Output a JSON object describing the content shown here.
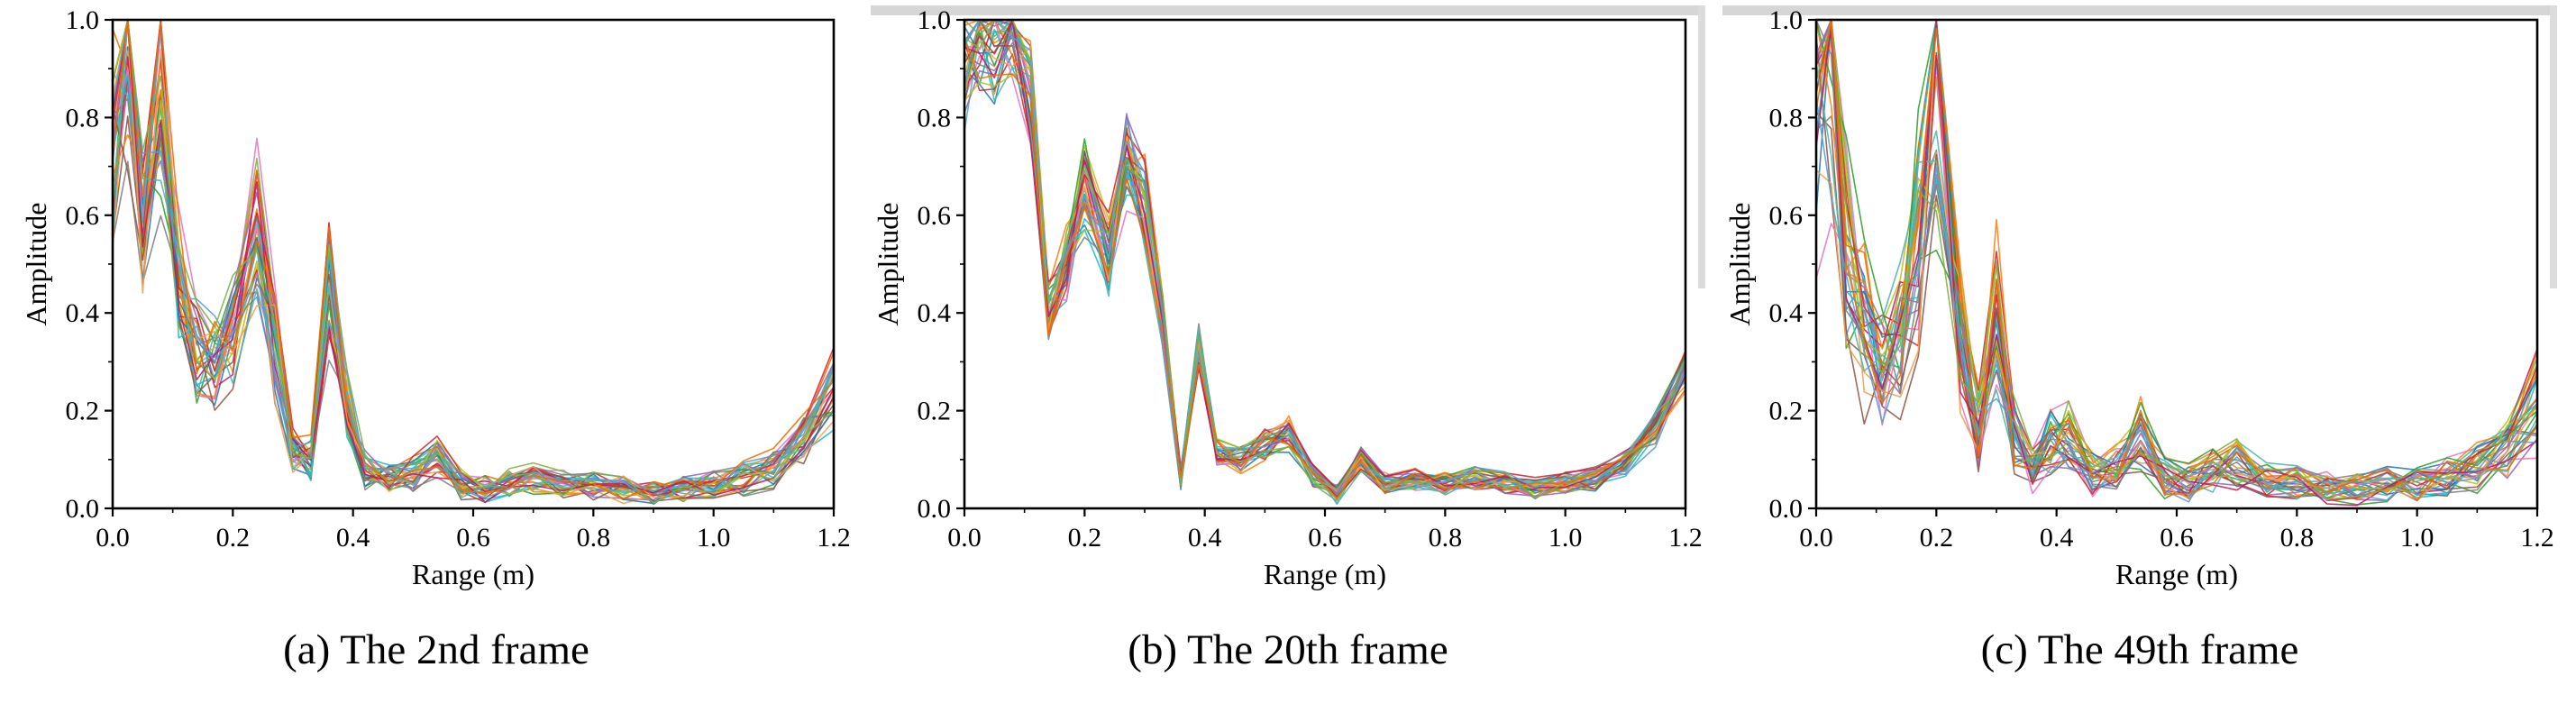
{
  "figure": {
    "background": "#ffffff",
    "panel_count": 3
  },
  "palette": [
    "#ff7f0e",
    "#2ca02c",
    "#1f77b4",
    "#e377c2",
    "#17becf",
    "#9467bd",
    "#bcbd22",
    "#d62728",
    "#8c564b",
    "#7f7f7f",
    "#f29e4c",
    "#4db6ac",
    "#c2185b",
    "#5c9bd5",
    "#7cb342",
    "#ef6c00"
  ],
  "chart_data": [
    {
      "type": "line",
      "title": "(a) The 2nd frame",
      "xlabel": "Range (m)",
      "ylabel": "Amplitude",
      "xlim": [
        0.0,
        1.2
      ],
      "ylim": [
        0.0,
        1.0
      ],
      "xtick_labels": [
        "0.0",
        "0.2",
        "0.4",
        "0.6",
        "0.8",
        "1.0",
        "1.2"
      ],
      "ytick_labels": [
        "0.0",
        "0.2",
        "0.4",
        "0.6",
        "0.8",
        "1.0"
      ],
      "grid": false,
      "legend": null,
      "n_lines": 32,
      "spread": 0.22,
      "x": [
        0.0,
        0.025,
        0.05,
        0.08,
        0.11,
        0.14,
        0.17,
        0.2,
        0.24,
        0.27,
        0.3,
        0.33,
        0.36,
        0.39,
        0.42,
        0.46,
        0.5,
        0.54,
        0.58,
        0.62,
        0.66,
        0.7,
        0.75,
        0.8,
        0.85,
        0.9,
        0.95,
        1.0,
        1.05,
        1.1,
        1.15,
        1.2
      ],
      "base": [
        0.75,
        0.92,
        0.58,
        0.85,
        0.45,
        0.32,
        0.3,
        0.35,
        0.55,
        0.33,
        0.12,
        0.1,
        0.44,
        0.2,
        0.08,
        0.06,
        0.07,
        0.1,
        0.05,
        0.04,
        0.05,
        0.06,
        0.05,
        0.05,
        0.04,
        0.03,
        0.04,
        0.05,
        0.06,
        0.08,
        0.14,
        0.24
      ]
    },
    {
      "type": "line",
      "title": "(b) The 20th frame",
      "xlabel": "Range (m)",
      "ylabel": "Amplitude",
      "xlim": [
        0.0,
        1.2
      ],
      "ylim": [
        0.0,
        1.0
      ],
      "xtick_labels": [
        "0.0",
        "0.2",
        "0.4",
        "0.6",
        "0.8",
        "1.0",
        "1.2"
      ],
      "ytick_labels": [
        "0.0",
        "0.2",
        "0.4",
        "0.6",
        "0.8",
        "1.0"
      ],
      "grid": false,
      "legend": null,
      "n_lines": 32,
      "spread": 0.09,
      "x": [
        0.0,
        0.025,
        0.05,
        0.08,
        0.11,
        0.14,
        0.17,
        0.2,
        0.24,
        0.27,
        0.3,
        0.33,
        0.36,
        0.39,
        0.42,
        0.46,
        0.5,
        0.54,
        0.58,
        0.62,
        0.66,
        0.7,
        0.75,
        0.8,
        0.85,
        0.9,
        0.95,
        1.0,
        1.05,
        1.1,
        1.15,
        1.2
      ],
      "base": [
        0.9,
        0.98,
        0.96,
        1.0,
        0.85,
        0.4,
        0.5,
        0.65,
        0.52,
        0.72,
        0.62,
        0.38,
        0.06,
        0.33,
        0.12,
        0.1,
        0.13,
        0.15,
        0.07,
        0.03,
        0.1,
        0.05,
        0.06,
        0.05,
        0.06,
        0.05,
        0.04,
        0.05,
        0.06,
        0.09,
        0.16,
        0.28
      ]
    },
    {
      "type": "line",
      "title": "(c) The 49th frame",
      "xlabel": "Range (m)",
      "ylabel": "Amplitude",
      "xlim": [
        0.0,
        1.2
      ],
      "ylim": [
        0.0,
        1.0
      ],
      "xtick_labels": [
        "0.0",
        "0.2",
        "0.4",
        "0.6",
        "0.8",
        "1.0",
        "1.2"
      ],
      "ytick_labels": [
        "0.0",
        "0.2",
        "0.4",
        "0.6",
        "0.8",
        "1.0"
      ],
      "grid": false,
      "legend": null,
      "n_lines": 32,
      "spread": 0.32,
      "x": [
        0.0,
        0.025,
        0.05,
        0.08,
        0.11,
        0.14,
        0.17,
        0.2,
        0.24,
        0.27,
        0.3,
        0.33,
        0.36,
        0.39,
        0.42,
        0.46,
        0.5,
        0.54,
        0.58,
        0.62,
        0.66,
        0.7,
        0.75,
        0.8,
        0.85,
        0.9,
        0.95,
        1.0,
        1.05,
        1.1,
        1.15,
        1.2
      ],
      "base": [
        0.8,
        0.95,
        0.5,
        0.35,
        0.3,
        0.33,
        0.55,
        0.88,
        0.35,
        0.16,
        0.38,
        0.15,
        0.08,
        0.13,
        0.14,
        0.07,
        0.08,
        0.14,
        0.06,
        0.05,
        0.08,
        0.09,
        0.05,
        0.05,
        0.04,
        0.04,
        0.05,
        0.05,
        0.06,
        0.08,
        0.12,
        0.22
      ]
    }
  ]
}
